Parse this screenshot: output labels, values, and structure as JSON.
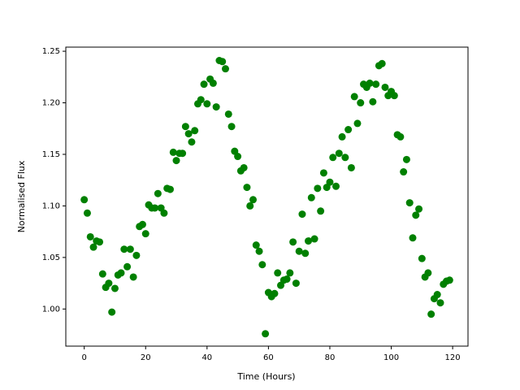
{
  "chart_data": {
    "type": "scatter",
    "xlabel": "Time (Hours)",
    "ylabel": "Normalised Flux",
    "color": "#008000",
    "x": [
      0,
      1,
      2,
      3,
      4,
      5,
      6,
      7,
      8,
      9,
      10,
      11,
      12,
      13,
      14,
      15,
      16,
      17,
      18,
      19,
      20,
      21,
      22,
      23,
      24,
      25,
      26,
      27,
      28,
      29,
      30,
      31,
      32,
      33,
      34,
      35,
      36,
      37,
      38,
      39,
      40,
      41,
      42,
      43,
      44,
      45,
      46,
      47,
      48,
      49,
      50,
      51,
      52,
      53,
      54,
      55,
      56,
      57,
      58,
      59,
      60,
      61,
      62,
      63,
      64,
      65,
      66,
      67,
      68,
      69,
      70,
      71,
      72,
      73,
      74,
      75,
      76,
      77,
      78,
      79,
      80,
      81,
      82,
      83,
      84,
      85,
      86,
      87,
      88,
      89,
      90,
      91,
      92,
      93,
      94,
      95,
      96,
      97,
      98,
      99,
      100,
      101,
      102,
      103,
      104,
      105,
      106,
      107,
      108,
      109,
      110,
      111,
      112,
      113,
      114,
      115,
      116,
      117,
      118,
      119
    ],
    "values": [
      1.106,
      1.093,
      1.07,
      1.06,
      1.066,
      1.065,
      1.034,
      1.021,
      1.025,
      0.997,
      1.02,
      1.033,
      1.035,
      1.058,
      1.041,
      1.058,
      1.031,
      1.052,
      1.08,
      1.082,
      1.073,
      1.101,
      1.098,
      1.098,
      1.112,
      1.098,
      1.093,
      1.117,
      1.116,
      1.152,
      1.144,
      1.151,
      1.151,
      1.177,
      1.17,
      1.162,
      1.173,
      1.199,
      1.203,
      1.218,
      1.199,
      1.223,
      1.219,
      1.196,
      1.241,
      1.24,
      1.233,
      1.189,
      1.177,
      1.153,
      1.148,
      1.134,
      1.137,
      1.118,
      1.1,
      1.106,
      1.062,
      1.056,
      1.043,
      0.976,
      1.016,
      1.012,
      1.015,
      1.035,
      1.023,
      1.028,
      1.029,
      1.035,
      1.065,
      1.025,
      1.056,
      1.092,
      1.054,
      1.066,
      1.108,
      1.068,
      1.117,
      1.095,
      1.132,
      1.118,
      1.123,
      1.147,
      1.119,
      1.151,
      1.167,
      1.147,
      1.174,
      1.137,
      1.206,
      1.18,
      1.2,
      1.218,
      1.215,
      1.219,
      1.201,
      1.218,
      1.236,
      1.238,
      1.215,
      1.207,
      1.211,
      1.207,
      1.169,
      1.167,
      1.133,
      1.145,
      1.103,
      1.069,
      1.091,
      1.097,
      1.049,
      1.031,
      1.035,
      0.995,
      1.01,
      1.014,
      1.006,
      1.024,
      1.027,
      1.028
    ],
    "xlim": [
      -6,
      125
    ],
    "ylim": [
      0.964,
      1.254
    ],
    "xticks": [
      0,
      20,
      40,
      60,
      80,
      100,
      120
    ],
    "yticks": [
      {
        "value": 1.0,
        "label": "1.00"
      },
      1.05,
      {
        "value": 1.1,
        "label": "1.10"
      },
      1.15,
      {
        "value": 1.2,
        "label": "1.20"
      },
      1.25
    ]
  }
}
